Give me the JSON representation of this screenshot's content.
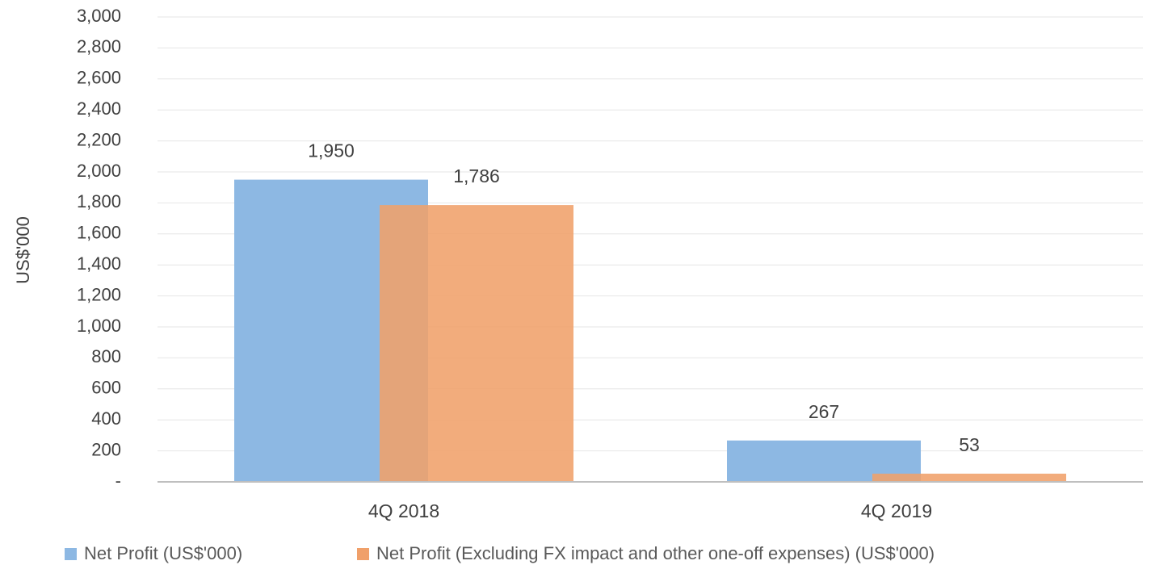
{
  "chart_data": {
    "type": "bar",
    "y_label": "US$'000",
    "categories": [
      "4Q 2018",
      "4Q 2019"
    ],
    "series": [
      {
        "name": "Net Profit (US$'000)",
        "color": "#8db8e3",
        "values": [
          1950,
          267
        ],
        "value_labels": [
          "1,950",
          "267"
        ]
      },
      {
        "name": "Net Profit (Excluding FX impact and other one-off expenses) (US$'000)",
        "color": "#f0a06a",
        "values": [
          1786,
          53
        ],
        "value_labels": [
          "1,786",
          "53"
        ]
      }
    ],
    "ylim": [
      0,
      3000
    ],
    "yticks": [
      {
        "value": 0,
        "label": "-"
      },
      {
        "value": 200,
        "label": "200"
      },
      {
        "value": 400,
        "label": "400"
      },
      {
        "value": 600,
        "label": "600"
      },
      {
        "value": 800,
        "label": "800"
      },
      {
        "value": 1000,
        "label": "1,000"
      },
      {
        "value": 1200,
        "label": "1,200"
      },
      {
        "value": 1400,
        "label": "1,400"
      },
      {
        "value": 1600,
        "label": "1,600"
      },
      {
        "value": 1800,
        "label": "1,800"
      },
      {
        "value": 2000,
        "label": "2,000"
      },
      {
        "value": 2200,
        "label": "2,200"
      },
      {
        "value": 2400,
        "label": "2,400"
      },
      {
        "value": 2600,
        "label": "2,600"
      },
      {
        "value": 2800,
        "label": "2,800"
      },
      {
        "value": 3000,
        "label": "3,000"
      }
    ],
    "grid": true,
    "legend": "bottom"
  }
}
